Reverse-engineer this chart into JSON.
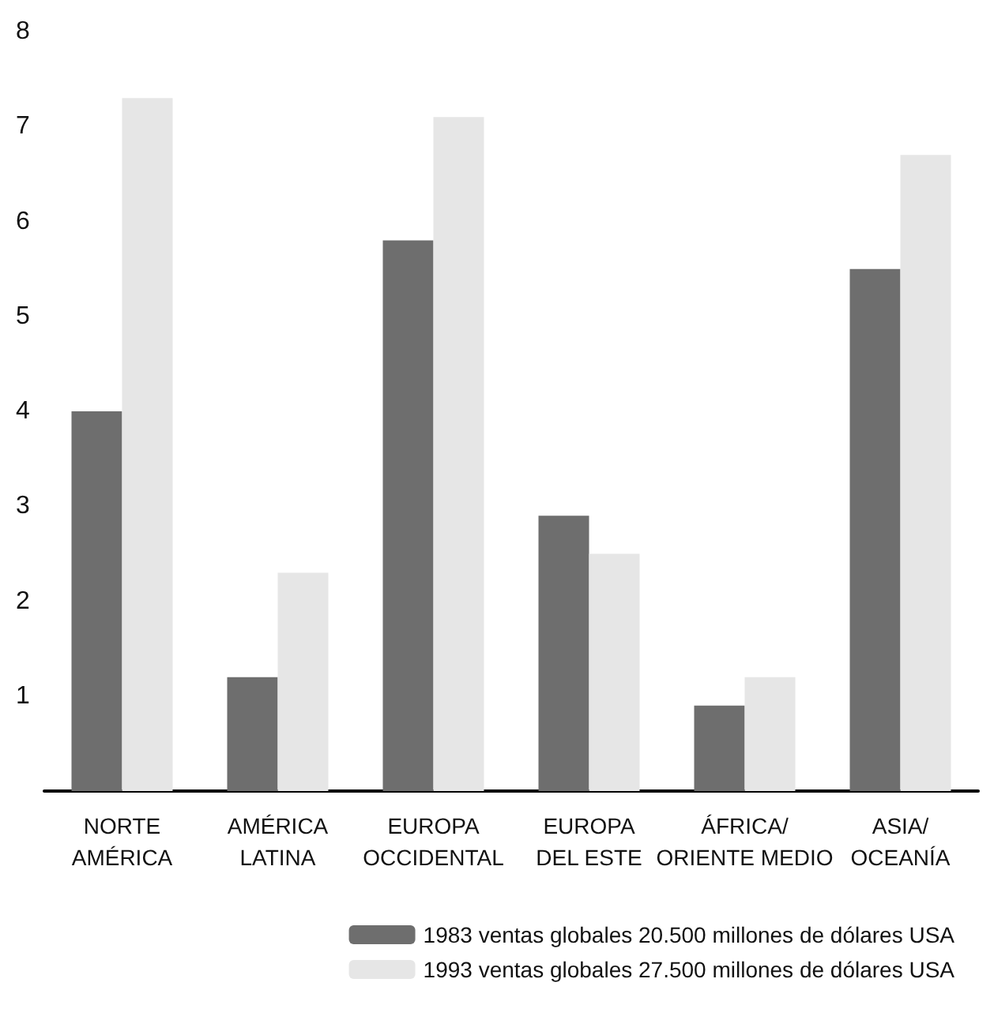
{
  "chart_data": {
    "type": "bar",
    "categories": [
      "NORTE\nAMÉRICA",
      "AMÉRICA\nLATINA",
      "EUROPA\nOCCIDENTAL",
      "EUROPA\nDEL ESTE",
      "ÁFRICA/\nORIENTE MEDIO",
      "ASIA/\nOCEANÍA"
    ],
    "series": [
      {
        "name": "1983 ventas globales 20.500 millones de dólares USA",
        "color": "#6e6e6e",
        "values": [
          4.0,
          1.2,
          5.8,
          2.9,
          0.9,
          5.5
        ]
      },
      {
        "name": "1993 ventas globales 27.500 millones de dólares USA",
        "color": "#e6e6e6",
        "values": [
          7.3,
          2.3,
          7.1,
          2.5,
          1.2,
          6.7
        ]
      }
    ],
    "ylim": [
      0,
      8
    ],
    "yticks": [
      1,
      2,
      3,
      4,
      5,
      6,
      7,
      8
    ],
    "grid": false,
    "legend": "bottom right"
  }
}
